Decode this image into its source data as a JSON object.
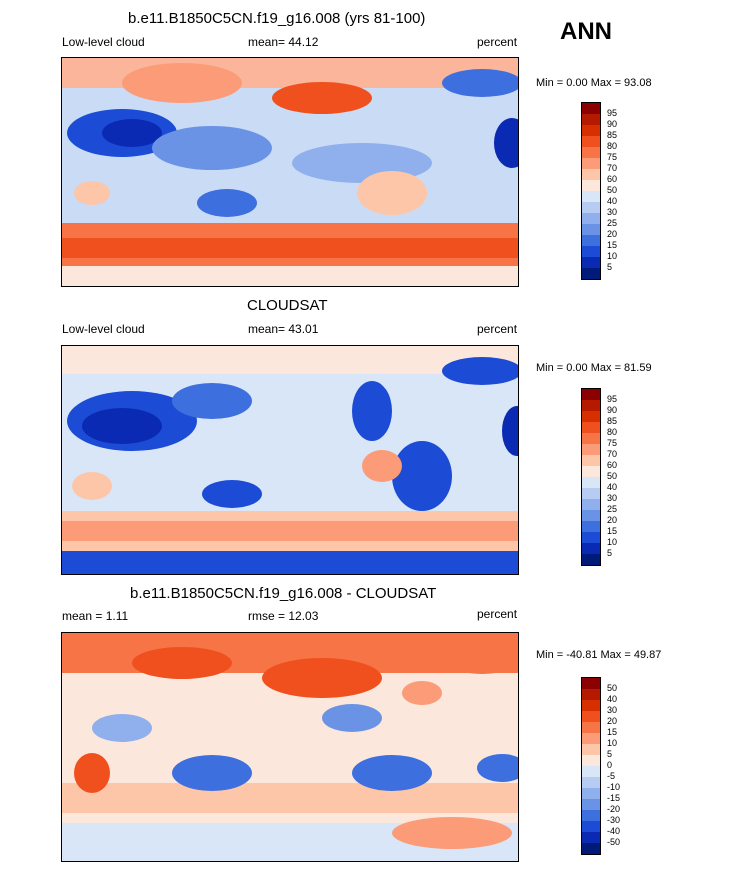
{
  "season": "ANN",
  "panels": [
    {
      "title": "b.e11.B1850C5CN.f19_g16.008 (yrs 81-100)",
      "left_label": "Low-level cloud",
      "center_label": "mean=  44.12",
      "right_label": "percent",
      "minmax": "Min =   0.00 Max =  93.08",
      "colorbar": {
        "labels": [
          "95",
          "90",
          "85",
          "80",
          "75",
          "70",
          "60",
          "50",
          "40",
          "30",
          "25",
          "20",
          "15",
          "10",
          "5"
        ],
        "colors": [
          "#8b0000",
          "#b51a00",
          "#d63000",
          "#f0501e",
          "#f77446",
          "#fb9b78",
          "#fdc6a8",
          "#fce7dc",
          "#d9e6f7",
          "#b6ccf2",
          "#8fb0ec",
          "#6a93e6",
          "#3e6fdf",
          "#1c4cd6",
          "#0a2ab3",
          "#001a7a"
        ]
      }
    },
    {
      "title": "CLOUDSAT",
      "left_label": "Low-level cloud",
      "center_label": "mean=  43.01",
      "right_label": "percent",
      "minmax": "Min =   0.00 Max =  81.59",
      "colorbar": {
        "labels": [
          "95",
          "90",
          "85",
          "80",
          "75",
          "70",
          "60",
          "50",
          "40",
          "30",
          "25",
          "20",
          "15",
          "10",
          "5"
        ],
        "colors": [
          "#8b0000",
          "#b51a00",
          "#d63000",
          "#f0501e",
          "#f77446",
          "#fb9b78",
          "#fdc6a8",
          "#fce7dc",
          "#d9e6f7",
          "#b6ccf2",
          "#8fb0ec",
          "#6a93e6",
          "#3e6fdf",
          "#1c4cd6",
          "#0a2ab3",
          "#001a7a"
        ]
      }
    },
    {
      "title": "b.e11.B1850C5CN.f19_g16.008 - CLOUDSAT",
      "left_label": "mean =   1.11",
      "center_label": "rmse =  12.03",
      "right_label": "percent",
      "minmax": "Min = -40.81 Max =  49.87",
      "colorbar": {
        "labels": [
          "50",
          "40",
          "30",
          "20",
          "15",
          "10",
          "5",
          "0",
          "-5",
          "-10",
          "-15",
          "-20",
          "-30",
          "-40",
          "-50"
        ],
        "colors": [
          "#8b0000",
          "#b51a00",
          "#d63000",
          "#f0501e",
          "#f77446",
          "#fb9b78",
          "#fdc6a8",
          "#fce7dc",
          "#d9e6f7",
          "#b6ccf2",
          "#8fb0ec",
          "#6a93e6",
          "#3e6fdf",
          "#1c4cd6",
          "#0a2ab3",
          "#001a7a"
        ]
      }
    }
  ]
}
